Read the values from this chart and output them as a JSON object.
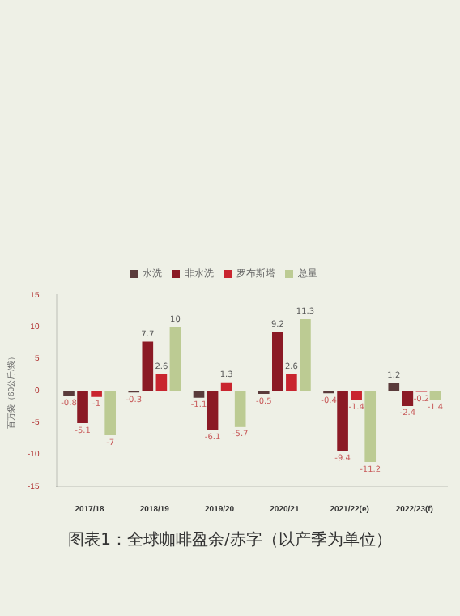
{
  "chart_data": {
    "type": "bar",
    "title": "图表1：全球咖啡盈余/赤字（以产季为单位）",
    "ylabel": "百万袋（60公斤/袋）",
    "categories": [
      "2017/18",
      "2018/19",
      "2019/20",
      "2020/21",
      "2021/22(e)",
      "2022/23(f)"
    ],
    "series": [
      {
        "name": "水洗",
        "color": "#5a3b3b",
        "values": [
          -0.8,
          -0.3,
          -1.1,
          -0.5,
          -0.4,
          1.2
        ]
      },
      {
        "name": "非水洗",
        "color": "#8b1a25",
        "values": [
          -5.1,
          7.7,
          -6.1,
          9.2,
          -9.4,
          -2.4
        ]
      },
      {
        "name": "罗布斯塔",
        "color": "#c9252f",
        "values": [
          -1.0,
          2.6,
          1.3,
          2.6,
          -1.4,
          -0.2
        ]
      },
      {
        "name": "总量",
        "color": "#bccb93",
        "values": [
          -7.0,
          10.0,
          -5.7,
          11.3,
          -11.2,
          -1.4
        ]
      }
    ],
    "ylim": [
      -15,
      15
    ],
    "yticks": [
      -15,
      -10,
      -5,
      0,
      5,
      10,
      15
    ],
    "grid": false,
    "legend": "top",
    "data_labels": true
  }
}
